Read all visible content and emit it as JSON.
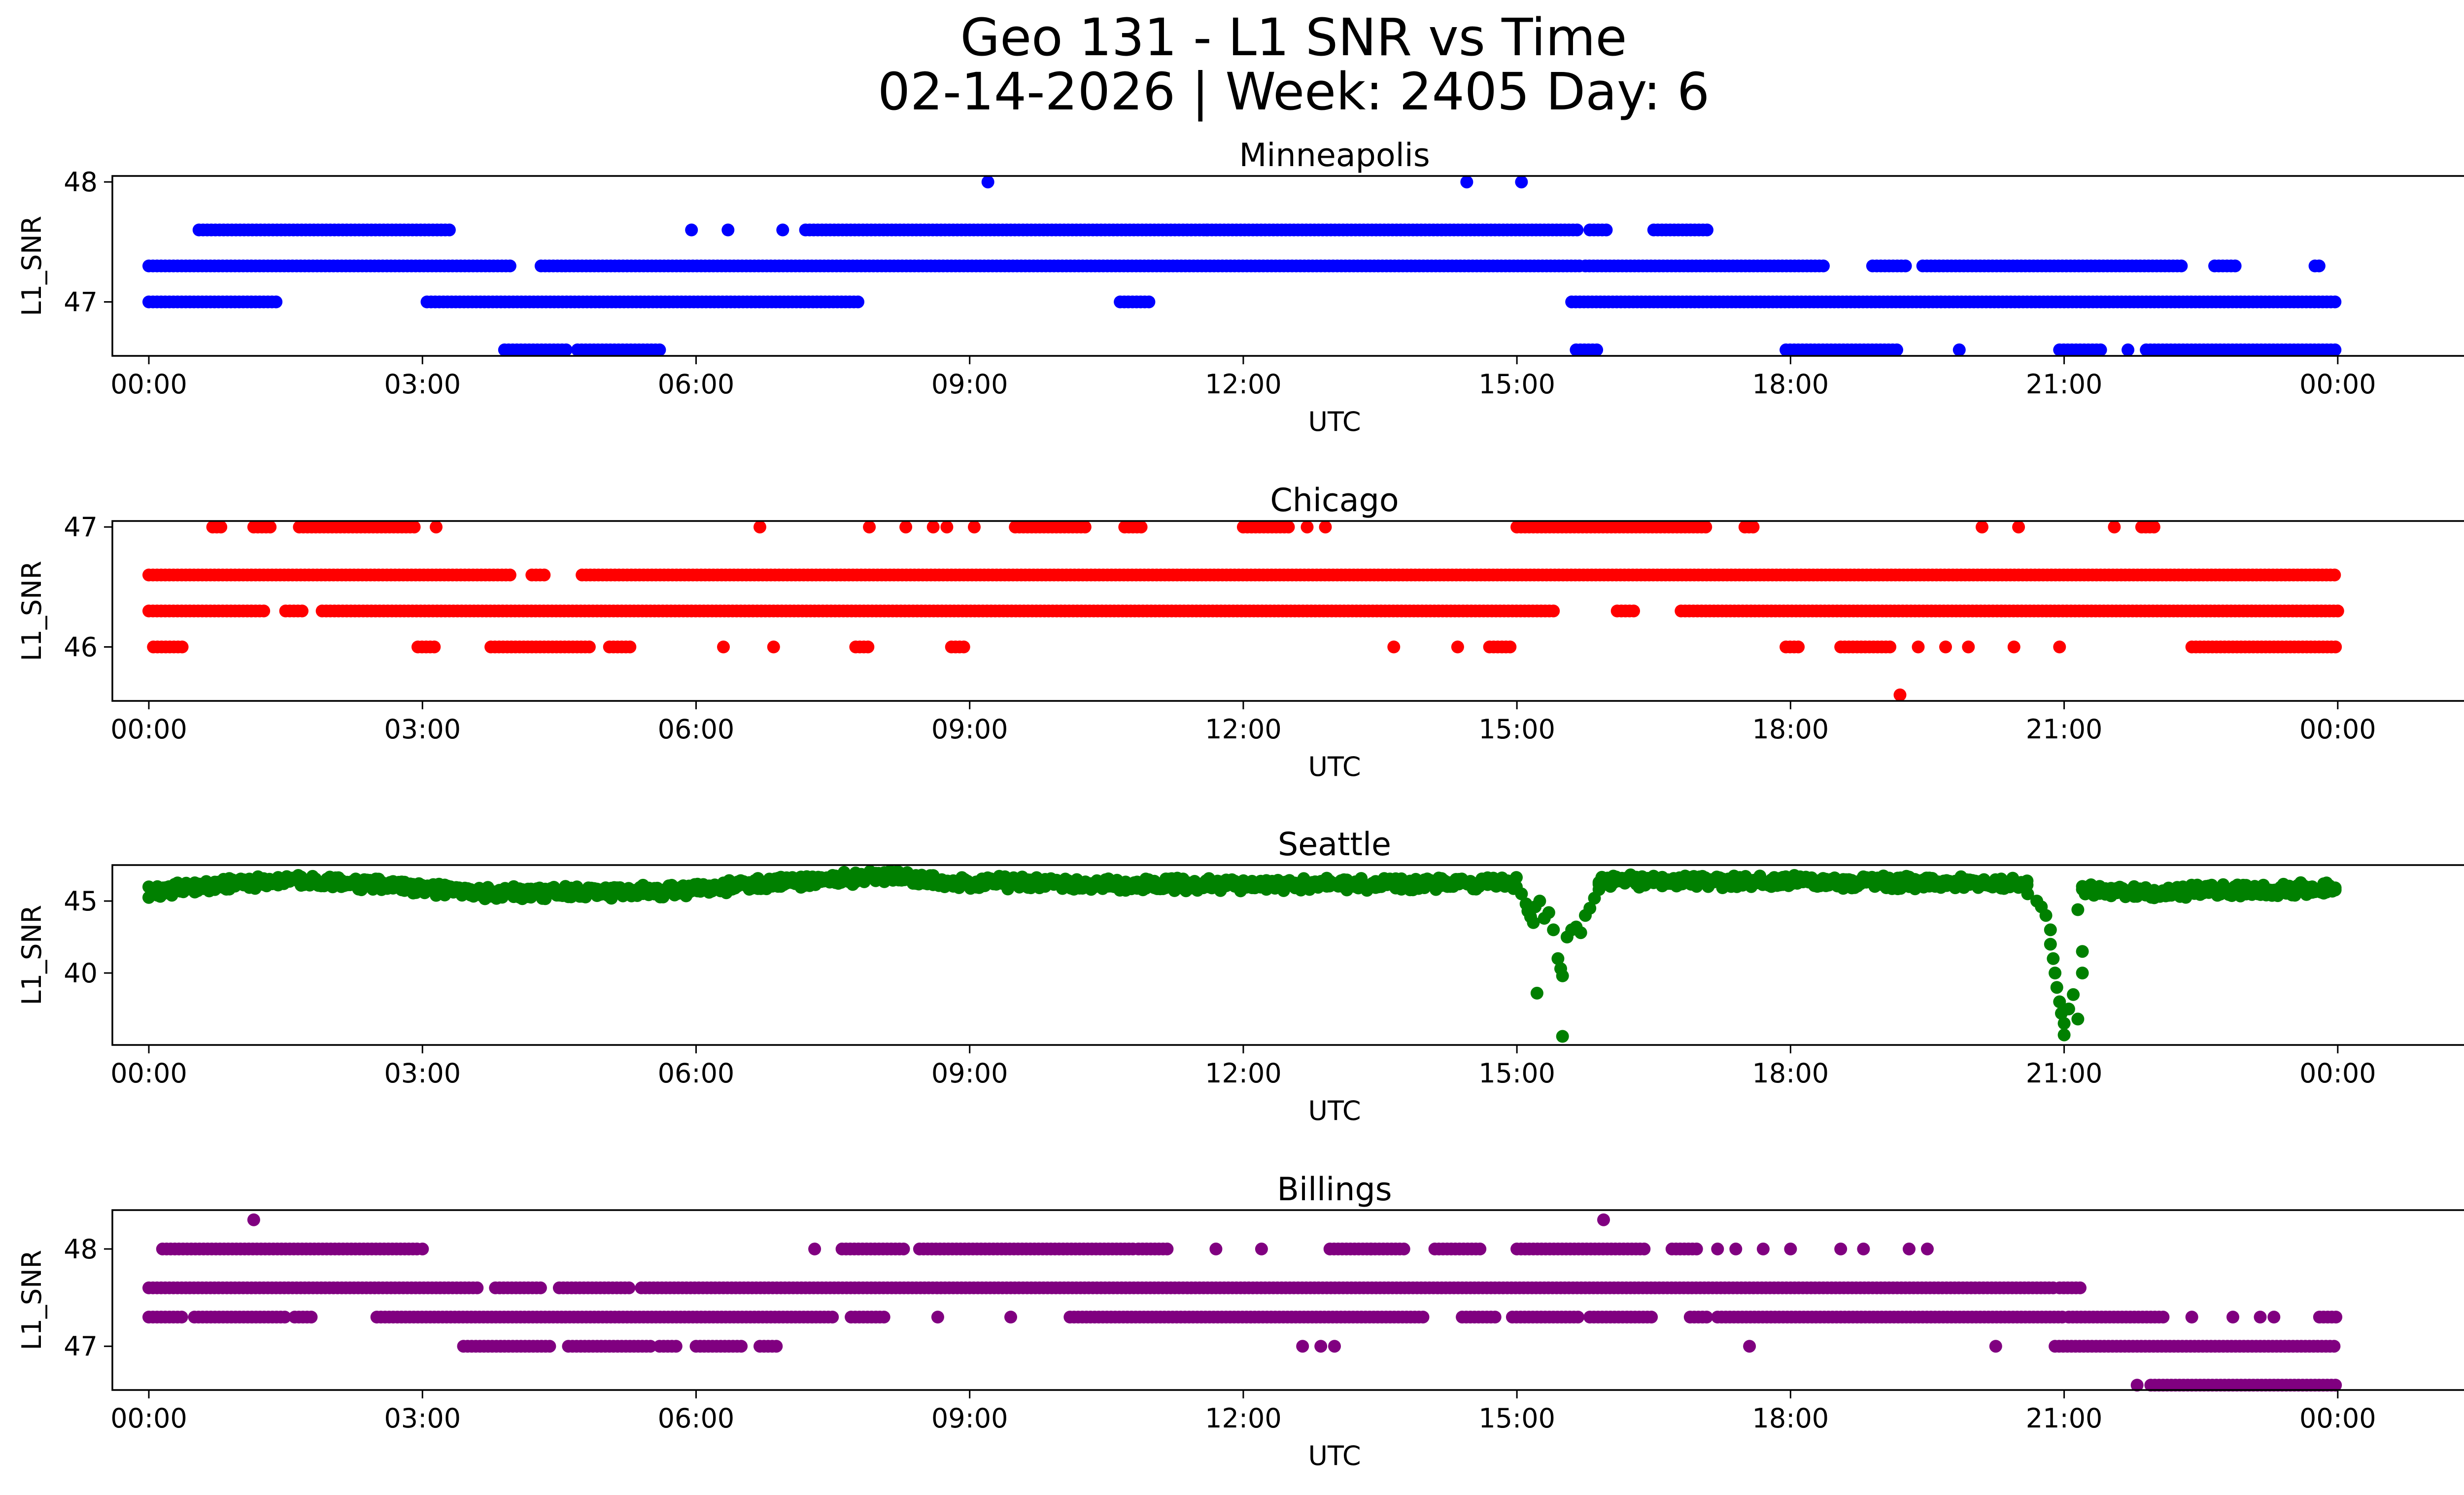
{
  "title_line1": "Geo 131 - L1 SNR vs Time",
  "title_line2": "02-14-2026 | Week: 2405 Day: 6",
  "chart_data": [
    {
      "type": "scatter",
      "title": "Minneapolis",
      "xlabel": "UTC",
      "ylabel": "L1_SNR",
      "color": "#0000ff",
      "xlim": [
        -0.4,
        26.4
      ],
      "ylim": [
        46.55,
        48.05
      ],
      "yticks": [
        47,
        48
      ],
      "xticks": [
        0,
        3,
        6,
        9,
        12,
        15,
        18,
        21,
        24
      ],
      "xtick_labels": [
        "00:00",
        "03:00",
        "06:00",
        "09:00",
        "12:00",
        "15:00",
        "18:00",
        "21:00",
        "00:00"
      ],
      "series": [
        {
          "y": 47.3,
          "runs": [
            [
              0.0,
              4.0
            ],
            [
              4.3,
              15.7
            ],
            [
              15.75,
              18.4
            ],
            [
              18.9,
              19.3
            ],
            [
              19.45,
              22.3
            ],
            [
              22.65,
              22.9
            ],
            [
              23.75,
              23.8
            ]
          ]
        },
        {
          "y": 47.0,
          "runs": [
            [
              0.0,
              1.4
            ],
            [
              3.05,
              7.8
            ],
            [
              10.65,
              11.0
            ],
            [
              15.6,
              24.0
            ]
          ]
        },
        {
          "y": 47.6,
          "runs": [
            [
              0.55,
              3.3
            ],
            [
              7.2,
              15.7
            ],
            [
              15.8,
              16.0
            ],
            [
              16.5,
              17.1
            ]
          ],
          "points": [
            5.95,
            6.35,
            6.95,
            11.6
          ]
        },
        {
          "y": 46.6,
          "runs": [
            [
              3.9,
              4.6
            ],
            [
              4.7,
              5.6
            ],
            [
              15.65,
              15.9
            ],
            [
              17.95,
              19.2
            ],
            [
              20.95,
              21.4
            ],
            [
              21.9,
              24.0
            ]
          ],
          "points": [
            19.85,
            21.7
          ]
        },
        {
          "y": 48.0,
          "points": [
            9.2,
            14.45,
            15.05
          ]
        }
      ]
    },
    {
      "type": "scatter",
      "title": "Chicago",
      "xlabel": "UTC",
      "ylabel": "L1_SNR",
      "color": "#ff0000",
      "xlim": [
        -0.4,
        26.4
      ],
      "ylim": [
        45.55,
        47.05
      ],
      "yticks": [
        46,
        47
      ],
      "xticks": [
        0,
        3,
        6,
        9,
        12,
        15,
        18,
        21,
        24
      ],
      "xtick_labels": [
        "00:00",
        "03:00",
        "06:00",
        "09:00",
        "12:00",
        "15:00",
        "18:00",
        "21:00",
        "00:00"
      ],
      "series": [
        {
          "y": 46.6,
          "runs": [
            [
              0.0,
              4.0
            ],
            [
              4.2,
              4.35
            ],
            [
              4.75,
              24.0
            ]
          ]
        },
        {
          "y": 46.3,
          "runs": [
            [
              0.0,
              1.3
            ],
            [
              1.5,
              1.7
            ],
            [
              1.9,
              15.4
            ],
            [
              16.1,
              16.3
            ],
            [
              16.8,
              24.0
            ]
          ]
        },
        {
          "y": 46.0,
          "runs": [
            [
              0.05,
              0.4
            ],
            [
              2.95,
              3.15
            ],
            [
              3.75,
              4.85
            ],
            [
              5.05,
              5.3
            ],
            [
              7.75,
              7.9
            ],
            [
              8.8,
              8.95
            ],
            [
              14.7,
              14.95
            ],
            [
              17.95,
              18.1
            ],
            [
              18.55,
              19.1
            ],
            [
              22.4,
              24.0
            ]
          ],
          "points": [
            6.3,
            6.85,
            13.65,
            14.35,
            19.4,
            19.7,
            19.95,
            20.45,
            20.95
          ]
        },
        {
          "y": 47.0,
          "runs": [
            [
              0.7,
              0.8
            ],
            [
              1.15,
              1.35
            ],
            [
              1.65,
              2.95
            ],
            [
              9.5,
              10.3
            ],
            [
              10.7,
              10.9
            ],
            [
              12.0,
              12.5
            ],
            [
              15.0,
              17.1
            ],
            [
              17.5,
              17.6
            ],
            [
              21.85,
              22.0
            ]
          ],
          "points": [
            3.15,
            6.7,
            7.9,
            8.3,
            8.6,
            8.75,
            9.05,
            12.7,
            12.9,
            20.1,
            20.5,
            21.55
          ]
        },
        {
          "y": 45.6,
          "points": [
            19.2
          ]
        }
      ]
    },
    {
      "type": "scatter",
      "title": "Seattle",
      "xlabel": "UTC",
      "ylabel": "L1_SNR",
      "color": "#008000",
      "xlim": [
        -0.4,
        26.4
      ],
      "ylim": [
        35.0,
        47.5
      ],
      "yticks": [
        40,
        45
      ],
      "xticks": [
        0,
        3,
        6,
        9,
        12,
        15,
        18,
        21,
        24
      ],
      "xtick_labels": [
        "00:00",
        "03:00",
        "06:00",
        "09:00",
        "12:00",
        "15:00",
        "18:00",
        "21:00",
        "00:00"
      ],
      "band": {
        "runs": [
          [
            0.0,
            15.0
          ],
          [
            15.9,
            20.6
          ],
          [
            21.2,
            24.0
          ]
        ],
        "profile": [
          [
            0,
            45.7
          ],
          [
            0.6,
            46.0
          ],
          [
            1.5,
            46.4
          ],
          [
            2.5,
            46.2
          ],
          [
            3.5,
            45.6
          ],
          [
            5.0,
            45.6
          ],
          [
            6.0,
            45.8
          ],
          [
            7.0,
            46.3
          ],
          [
            8.0,
            46.7
          ],
          [
            9.0,
            46.3
          ],
          [
            12.0,
            46.1
          ],
          [
            15.0,
            46.3
          ],
          [
            16.0,
            46.4
          ],
          [
            19.0,
            46.3
          ],
          [
            20.5,
            46.2
          ],
          [
            21.0,
            45.8
          ],
          [
            22.0,
            45.6
          ],
          [
            24.0,
            45.9
          ]
        ],
        "dy": 0.45
      },
      "dips": [
        {
          "center": 15.2,
          "points": [
            [
              15.05,
              45.5
            ],
            [
              15.1,
              44.8
            ],
            [
              15.12,
              44.3
            ],
            [
              15.15,
              43.9
            ],
            [
              15.18,
              43.5
            ],
            [
              15.2,
              44.6
            ],
            [
              15.22,
              38.6
            ],
            [
              15.25,
              45.0
            ],
            [
              15.3,
              43.8
            ],
            [
              15.35,
              44.2
            ],
            [
              15.4,
              43.0
            ],
            [
              15.45,
              41.0
            ],
            [
              15.48,
              40.3
            ],
            [
              15.5,
              39.8
            ],
            [
              15.5,
              35.6
            ],
            [
              15.55,
              42.5
            ],
            [
              15.6,
              43.0
            ],
            [
              15.65,
              43.2
            ],
            [
              15.7,
              42.8
            ],
            [
              15.75,
              44.0
            ],
            [
              15.8,
              44.5
            ],
            [
              15.85,
              45.2
            ],
            [
              15.9,
              45.8
            ]
          ]
        },
        {
          "center": 20.9,
          "points": [
            [
              20.6,
              45.5
            ],
            [
              20.7,
              45.0
            ],
            [
              20.75,
              44.6
            ],
            [
              20.8,
              44.0
            ],
            [
              20.85,
              43.0
            ],
            [
              20.85,
              42.0
            ],
            [
              20.88,
              41.0
            ],
            [
              20.9,
              40.0
            ],
            [
              20.92,
              39.0
            ],
            [
              20.95,
              38.0
            ],
            [
              20.97,
              37.2
            ],
            [
              21.0,
              36.5
            ],
            [
              21.0,
              35.7
            ],
            [
              21.05,
              37.5
            ],
            [
              21.1,
              38.5
            ],
            [
              21.15,
              36.8
            ],
            [
              21.15,
              44.4
            ],
            [
              21.2,
              41.5
            ],
            [
              21.2,
              40.0
            ]
          ]
        }
      ]
    },
    {
      "type": "scatter",
      "title": "Billings",
      "xlabel": "UTC",
      "ylabel": "L1_SNR",
      "color": "#800080",
      "xlim": [
        -0.4,
        26.4
      ],
      "ylim": [
        46.55,
        48.4
      ],
      "yticks": [
        47,
        48
      ],
      "xticks": [
        0,
        3,
        6,
        9,
        12,
        15,
        18,
        21,
        24
      ],
      "xtick_labels": [
        "00:00",
        "03:00",
        "06:00",
        "09:00",
        "12:00",
        "15:00",
        "18:00",
        "21:00",
        "00:00"
      ],
      "series": [
        {
          "y": 47.6,
          "runs": [
            [
              0.0,
              3.6
            ],
            [
              3.8,
              4.3
            ],
            [
              4.5,
              5.3
            ],
            [
              5.4,
              20.9
            ],
            [
              20.95,
              21.2
            ]
          ]
        },
        {
          "y": 47.3,
          "runs": [
            [
              0.0,
              0.4
            ],
            [
              0.5,
              1.5
            ],
            [
              1.6,
              1.8
            ],
            [
              2.5,
              7.5
            ],
            [
              7.7,
              8.1
            ],
            [
              10.1,
              14.0
            ],
            [
              14.4,
              14.8
            ],
            [
              14.95,
              15.7
            ],
            [
              15.8,
              16.5
            ],
            [
              16.9,
              17.1
            ],
            [
              17.2,
              21.0
            ],
            [
              21.05,
              22.1
            ],
            [
              23.8,
              24.0
            ]
          ],
          "points": [
            8.65,
            9.45,
            22.4,
            22.85,
            23.15,
            23.3
          ]
        },
        {
          "y": 47.0,
          "runs": [
            [
              3.45,
              4.4
            ],
            [
              4.6,
              5.5
            ],
            [
              5.6,
              5.8
            ],
            [
              6.0,
              6.5
            ],
            [
              6.7,
              6.9
            ],
            [
              20.9,
              24.0
            ]
          ],
          "points": [
            12.65,
            12.85,
            13.0,
            17.55,
            20.25
          ]
        },
        {
          "y": 48.0,
          "runs": [
            [
              0.15,
              2.95
            ],
            [
              7.6,
              8.3
            ],
            [
              8.45,
              10.8
            ],
            [
              10.85,
              11.2
            ],
            [
              12.95,
              13.8
            ],
            [
              14.1,
              14.6
            ],
            [
              15.0,
              16.4
            ],
            [
              16.7,
              17.0
            ]
          ],
          "points": [
            3.0,
            7.3,
            11.7,
            12.2,
            13.4,
            17.2,
            17.4,
            17.7,
            18.0,
            18.55,
            18.8,
            19.3,
            19.5
          ]
        },
        {
          "y": 46.6,
          "runs": [
            [
              21.95,
              24.0
            ]
          ],
          "points": [
            21.8
          ]
        },
        {
          "y": 48.3,
          "points": [
            1.15,
            15.95
          ]
        }
      ]
    }
  ]
}
